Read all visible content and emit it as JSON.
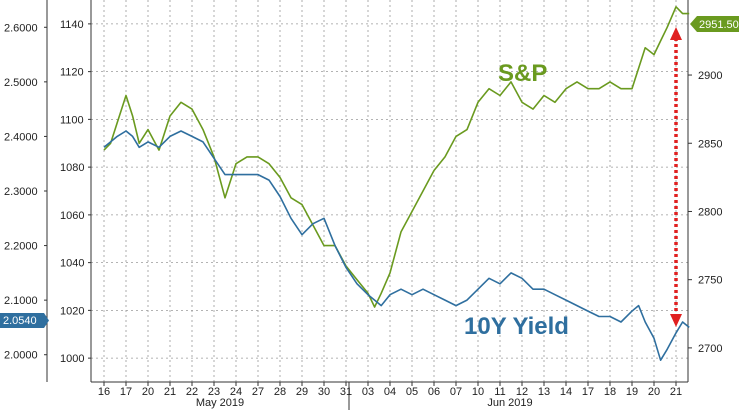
{
  "colors": {
    "spx": "#6a9a1f",
    "yield": "#2f6f9f",
    "arrow": "#e02020",
    "grid": "#9a9a9a"
  },
  "chart_data": {
    "type": "line",
    "title": "",
    "xlabel": "",
    "grid": true,
    "x_ticks": [
      "16",
      "17",
      "20",
      "21",
      "22",
      "23",
      "24",
      "27",
      "28",
      "29",
      "30",
      "31",
      "03",
      "04",
      "05",
      "06",
      "07",
      "10",
      "11",
      "12",
      "13",
      "14",
      "17",
      "18",
      "19",
      "20",
      "21"
    ],
    "months": [
      "May 2019",
      "Jun 2019"
    ],
    "left_axis_outer": {
      "name": "10Y Yield",
      "range": [
        1.95,
        2.65
      ],
      "ticks": [
        "2.0000",
        "2.1000",
        "2.2000",
        "2.3000",
        "2.4000",
        "2.5000",
        "2.6000"
      ],
      "last_value": "2.0540"
    },
    "left_axis_inner": {
      "range": [
        990,
        1150
      ],
      "ticks": [
        "1000",
        "1020",
        "1040",
        "1060",
        "1080",
        "1100",
        "1120",
        "1140"
      ]
    },
    "right_axis": {
      "name": "S&P",
      "range": [
        2675,
        2955
      ],
      "ticks": [
        "2700",
        "2750",
        "2800",
        "2850",
        "2900"
      ],
      "last_value": "2951.50"
    },
    "series": [
      {
        "name": "S&P",
        "axis": "right",
        "x": [
          0,
          0.3,
          0.6,
          1,
          1.3,
          1.6,
          2,
          2.5,
          3,
          3.5,
          4,
          4.5,
          5,
          5.5,
          6,
          6.5,
          7,
          7.5,
          8,
          8.5,
          9,
          9.5,
          10,
          10.5,
          11,
          11.5,
          12,
          12.3,
          12.6,
          13,
          13.5,
          14,
          14.5,
          15,
          15.5,
          16,
          16.5,
          17,
          17.5,
          18,
          18.5,
          19,
          19.5,
          20,
          20.5,
          21,
          21.5,
          22,
          22.5,
          23,
          23.5,
          24,
          24.3,
          24.6,
          25,
          25.3,
          25.6,
          26,
          26.3,
          26.6
        ],
        "values": [
          2845,
          2850,
          2865,
          2885,
          2870,
          2850,
          2860,
          2845,
          2870,
          2880,
          2875,
          2860,
          2840,
          2810,
          2835,
          2840,
          2840,
          2835,
          2825,
          2810,
          2805,
          2790,
          2775,
          2775,
          2760,
          2750,
          2740,
          2730,
          2740,
          2755,
          2785,
          2800,
          2815,
          2830,
          2840,
          2855,
          2860,
          2880,
          2890,
          2885,
          2895,
          2880,
          2875,
          2885,
          2880,
          2890,
          2895,
          2890,
          2890,
          2895,
          2890,
          2890,
          2905,
          2920,
          2915,
          2925,
          2935,
          2950,
          2945,
          2945
        ]
      },
      {
        "name": "10Y Yield",
        "axis": "left",
        "x": [
          0,
          0.3,
          0.6,
          1,
          1.3,
          1.6,
          2,
          2.5,
          3,
          3.5,
          4,
          4.5,
          5,
          5.5,
          6,
          6.5,
          7,
          7.5,
          8,
          8.5,
          9,
          9.5,
          10,
          10.5,
          11,
          11.5,
          12,
          12.3,
          12.6,
          13,
          13.5,
          14,
          14.5,
          15,
          15.5,
          16,
          16.5,
          17,
          17.5,
          18,
          18.5,
          19,
          19.5,
          20,
          20.5,
          21,
          21.5,
          22,
          22.5,
          23,
          23.5,
          24,
          24.3,
          24.6,
          25,
          25.3,
          25.6,
          26,
          26.3,
          26.6
        ],
        "values": [
          2.38,
          2.39,
          2.4,
          2.41,
          2.4,
          2.38,
          2.39,
          2.38,
          2.4,
          2.41,
          2.4,
          2.39,
          2.36,
          2.33,
          2.33,
          2.33,
          2.33,
          2.32,
          2.29,
          2.25,
          2.22,
          2.24,
          2.25,
          2.2,
          2.16,
          2.13,
          2.11,
          2.1,
          2.09,
          2.11,
          2.12,
          2.11,
          2.12,
          2.11,
          2.1,
          2.09,
          2.1,
          2.12,
          2.14,
          2.13,
          2.15,
          2.14,
          2.12,
          2.12,
          2.11,
          2.1,
          2.09,
          2.08,
          2.07,
          2.07,
          2.06,
          2.08,
          2.09,
          2.06,
          2.03,
          1.99,
          2.01,
          2.04,
          2.06,
          2.05
        ]
      }
    ]
  }
}
